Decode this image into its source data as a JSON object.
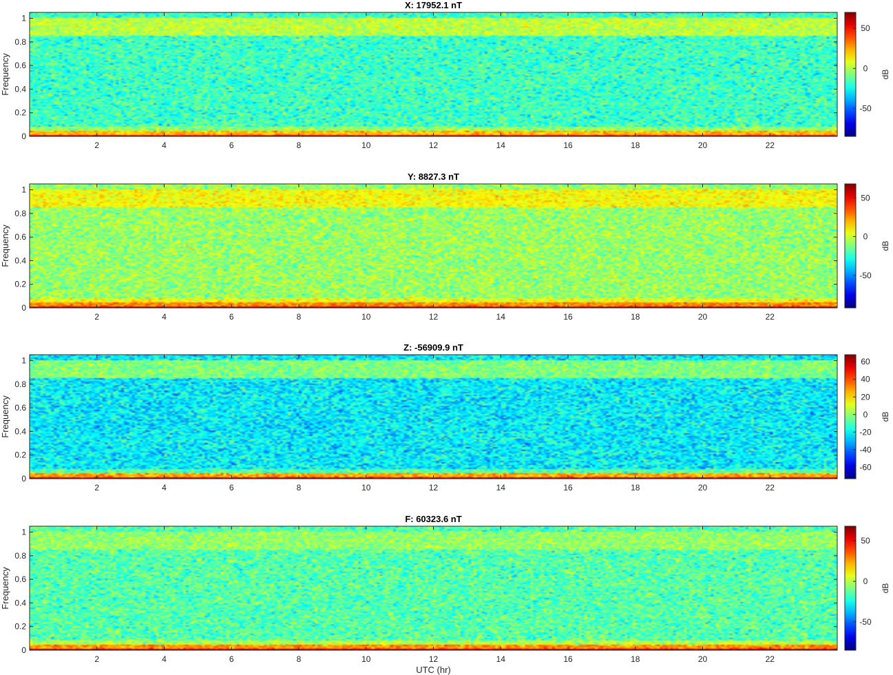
{
  "chart_data": [
    {
      "type": "heatmap",
      "title": "X: 17952.1 nT",
      "xlabel": "",
      "ylabel": "Frequency",
      "xlim": [
        0,
        24
      ],
      "ylim": [
        0,
        1.05
      ],
      "xticks": [
        2,
        4,
        6,
        8,
        10,
        12,
        14,
        16,
        18,
        20,
        22
      ],
      "yticks": [
        0,
        0.2,
        0.4,
        0.6,
        0.8,
        1
      ],
      "colorbar": {
        "label": "dB",
        "range": [
          -85,
          70
        ],
        "ticks": [
          50,
          0,
          -50
        ]
      },
      "colormap": "jet",
      "features": {
        "background_db": -18,
        "upper_band": {
          "freq": [
            0.85,
            1.0
          ],
          "db": 2
        },
        "low_freq_db": 30
      }
    },
    {
      "type": "heatmap",
      "title": "Y: 8827.3 nT",
      "xlabel": "",
      "ylabel": "Frequency",
      "xlim": [
        0,
        24
      ],
      "ylim": [
        0,
        1.05
      ],
      "xticks": [
        2,
        4,
        6,
        8,
        10,
        12,
        14,
        16,
        18,
        20,
        22
      ],
      "yticks": [
        0,
        0.2,
        0.4,
        0.6,
        0.8,
        1
      ],
      "colorbar": {
        "label": "dB",
        "range": [
          -92,
          68
        ],
        "ticks": [
          50,
          0,
          -50
        ]
      },
      "colormap": "jet",
      "features": {
        "background_db": -8,
        "upper_band": {
          "freq": [
            0.85,
            1.0
          ],
          "db": 8
        },
        "low_freq_db": 35
      }
    },
    {
      "type": "heatmap",
      "title": "Z: -56909.9 nT",
      "xlabel": "",
      "ylabel": "Frequency",
      "xlim": [
        0,
        24
      ],
      "ylim": [
        0,
        1.05
      ],
      "xticks": [
        2,
        4,
        6,
        8,
        10,
        12,
        14,
        16,
        18,
        20,
        22
      ],
      "yticks": [
        0,
        0.2,
        0.4,
        0.6,
        0.8,
        1
      ],
      "colorbar": {
        "label": "dB",
        "range": [
          -73,
          68
        ],
        "ticks": [
          60,
          40,
          20,
          0,
          -20,
          -40,
          -60
        ]
      },
      "colormap": "jet",
      "features": {
        "background_db": -22,
        "upper_band": {
          "freq": [
            0.85,
            1.0
          ],
          "db": -2
        },
        "low_freq_db": 35
      }
    },
    {
      "type": "heatmap",
      "title": "F: 60323.6 nT",
      "xlabel": "UTC (hr)",
      "ylabel": "Frequency",
      "xlim": [
        0,
        24
      ],
      "ylim": [
        0,
        1.05
      ],
      "xticks": [
        2,
        4,
        6,
        8,
        10,
        12,
        14,
        16,
        18,
        20,
        22
      ],
      "yticks": [
        0,
        0.2,
        0.4,
        0.6,
        0.8,
        1
      ],
      "colorbar": {
        "label": "dB",
        "range": [
          -85,
          68
        ],
        "ticks": [
          50,
          0,
          -50
        ]
      },
      "colormap": "jet",
      "features": {
        "background_db": -15,
        "upper_band": {
          "freq": [
            0.85,
            1.0
          ],
          "db": -5
        },
        "low_freq_db": 35
      }
    }
  ]
}
